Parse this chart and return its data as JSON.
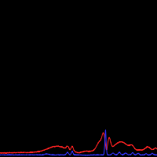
{
  "background_color": "#000000",
  "line1_color": "#ff2222",
  "line2_color": "#3333ff",
  "figsize": [
    2.0,
    2.0
  ],
  "dpi": 100,
  "ylim_max": 5.0,
  "linewidth": 0.7
}
